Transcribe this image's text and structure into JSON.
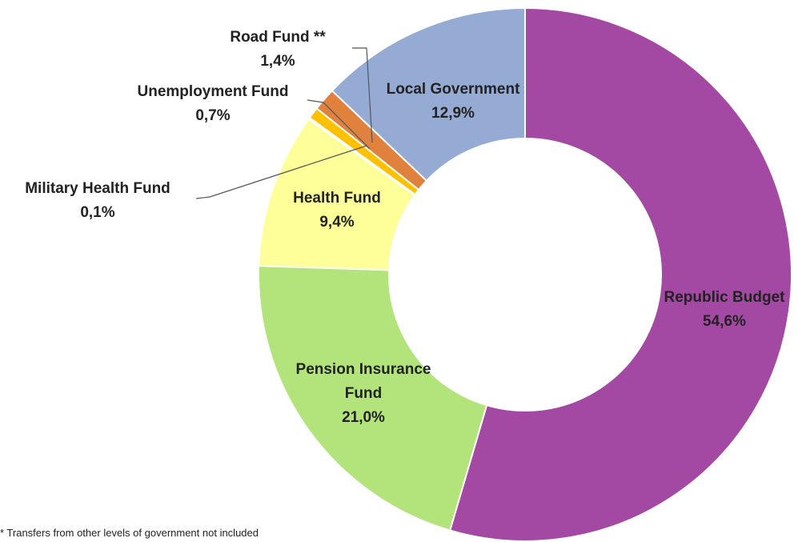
{
  "chart_data": {
    "type": "donut",
    "categories": [
      "Republic Budget",
      "Pension Insurance Fund",
      "Health Fund",
      "Military Health Fund",
      "Unemployment Fund",
      "Road Fund **",
      "Local Government"
    ],
    "values": [
      54.6,
      21.0,
      9.4,
      0.1,
      0.7,
      1.4,
      12.9
    ],
    "value_labels": [
      "54,6%",
      "21,0%",
      "9,4%",
      "0,1%",
      "0,7%",
      "1,4%",
      "12,9%"
    ],
    "colors": [
      "#a349a4",
      "#b3e47c",
      "#ffff99",
      "#c00000",
      "#ffc000",
      "#e0823d",
      "#95abd4"
    ],
    "footnote": "* Transfers from other levels of government not included"
  }
}
